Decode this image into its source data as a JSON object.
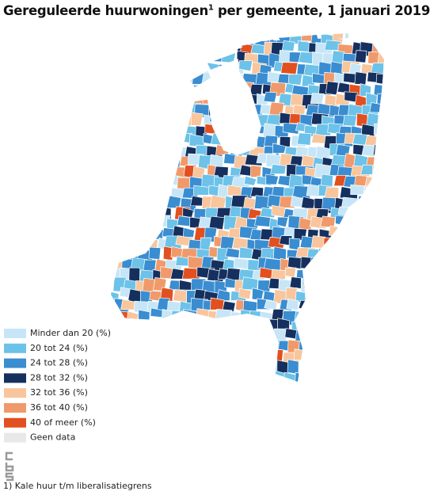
{
  "title": {
    "main": "Gereguleerde huurwoningen",
    "superscript": "1",
    "rest": " per gemeente, 1 januari 2019"
  },
  "legend": [
    {
      "label": "Minder dan 20 (%)",
      "color": "#c6e6f7"
    },
    {
      "label": "20 tot 24 (%)",
      "color": "#6cc2e8"
    },
    {
      "label": "24 tot 28 (%)",
      "color": "#3a8dd0"
    },
    {
      "label": "28 tot 32 (%)",
      "color": "#15305f"
    },
    {
      "label": "32 tot 36 (%)",
      "color": "#f9c59c"
    },
    {
      "label": "36 tot 40 (%)",
      "color": "#f09a6b"
    },
    {
      "label": "40 of meer (%)",
      "color": "#e2501f"
    },
    {
      "label": "Geen data",
      "color": "#e8e8e8"
    }
  ],
  "footnote": "1) Kale huur t/m liberalisatiegrens"
}
